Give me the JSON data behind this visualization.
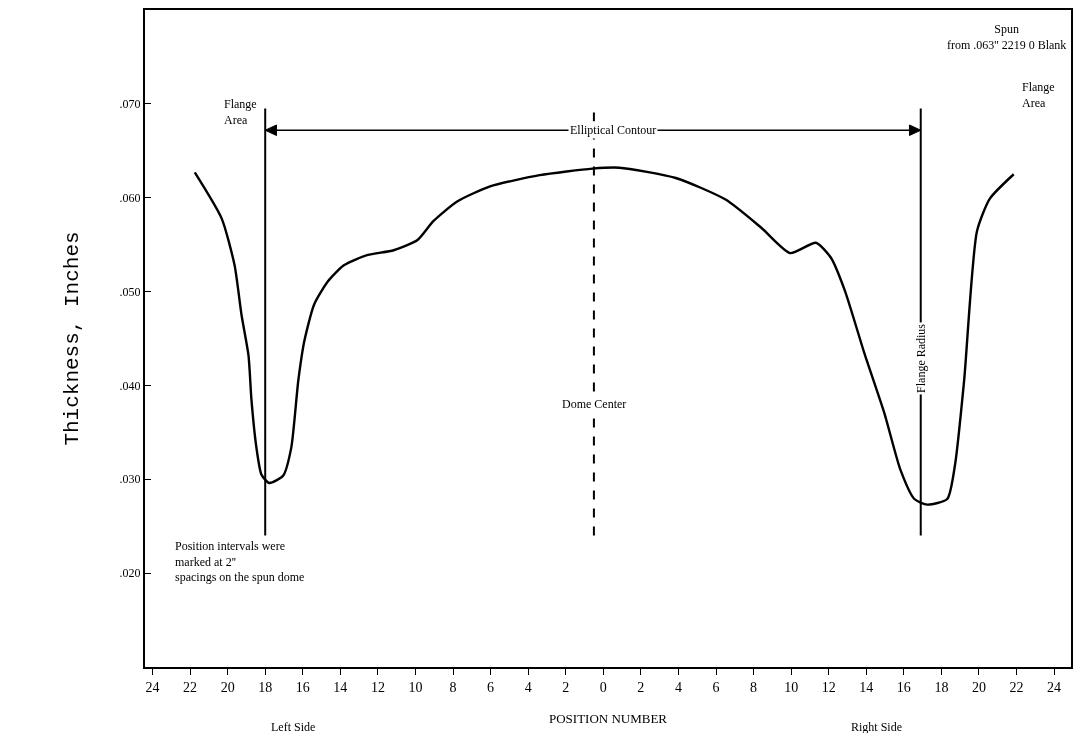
{
  "chart_data": {
    "type": "line",
    "xlabel": "POSITION NUMBER",
    "ylabel": "Thickness, Inches",
    "x": [
      -21.75,
      -20.32,
      -19.63,
      -19.26,
      -18.89,
      -18.73,
      -18.47,
      -18.2,
      -17.78,
      -17.04,
      -16.61,
      -16.24,
      -15.92,
      -15.4,
      -14.66,
      -13.81,
      -12.54,
      -11.16,
      -9.89,
      -9.05,
      -7.78,
      -6.03,
      -3.39,
      -0.58,
      0.85,
      3.86,
      6.51,
      8.41,
      9.95,
      11.32,
      12.12,
      12.86,
      13.92,
      14.97,
      15.82,
      16.56,
      17.25,
      18.31,
      18.73,
      19.21,
      19.89,
      20.58,
      21.85
    ],
    "series": [
      {
        "color": "#000000",
        "values": [
          0.0627,
          0.0578,
          0.0528,
          0.0475,
          0.0432,
          0.0384,
          0.0334,
          0.0305,
          0.0296,
          0.0304,
          0.0334,
          0.0405,
          0.0447,
          0.0486,
          0.0511,
          0.0528,
          0.0539,
          0.0544,
          0.0555,
          0.0575,
          0.0596,
          0.0612,
          0.0624,
          0.0631,
          0.0632,
          0.0621,
          0.0598,
          0.0568,
          0.0541,
          0.0552,
          0.0536,
          0.0501,
          0.0433,
          0.037,
          0.031,
          0.0279,
          0.0273,
          0.0279,
          0.0316,
          0.0405,
          0.0564,
          0.0599,
          0.0625
        ]
      }
    ],
    "xlim": [
      -24.4,
      24.9
    ],
    "ylim": [
      0.01,
      0.08
    ],
    "xticks": [
      {
        "value": -24,
        "label": "24"
      },
      {
        "value": -22,
        "label": "22"
      },
      {
        "value": -20,
        "label": "20"
      },
      {
        "value": -18,
        "label": "18"
      },
      {
        "value": -16,
        "label": "16"
      },
      {
        "value": -14,
        "label": "14"
      },
      {
        "value": -12,
        "label": "12"
      },
      {
        "value": -10,
        "label": "10"
      },
      {
        "value": -8,
        "label": "8"
      },
      {
        "value": -6,
        "label": "6"
      },
      {
        "value": -4,
        "label": "4"
      },
      {
        "value": -2,
        "label": "2"
      },
      {
        "value": 0,
        "label": "0"
      },
      {
        "value": 2,
        "label": "2"
      },
      {
        "value": 4,
        "label": "4"
      },
      {
        "value": 6,
        "label": "6"
      },
      {
        "value": 8,
        "label": "8"
      },
      {
        "value": 10,
        "label": "10"
      },
      {
        "value": 12,
        "label": "12"
      },
      {
        "value": 14,
        "label": "14"
      },
      {
        "value": 16,
        "label": "16"
      },
      {
        "value": 18,
        "label": "18"
      },
      {
        "value": 20,
        "label": "20"
      },
      {
        "value": 22,
        "label": "22"
      },
      {
        "value": 24,
        "label": "24"
      }
    ],
    "yticks": [
      {
        "value": 0.02,
        "label": ".020"
      },
      {
        "value": 0.03,
        "label": ".030"
      },
      {
        "value": 0.04,
        "label": ".040"
      },
      {
        "value": 0.05,
        "label": ".050"
      },
      {
        "value": 0.06,
        "label": ".060"
      },
      {
        "value": 0.07,
        "label": ".070"
      }
    ],
    "ref_lines": [
      {
        "axis": "x",
        "value": -18,
        "label": "Flange Area"
      },
      {
        "axis": "x",
        "value": -0.5,
        "label": "Dome Center",
        "line_style": "dashed"
      },
      {
        "axis": "x",
        "value": 16.9,
        "label": "Flange Radius"
      }
    ],
    "annotations": [
      "Spun from .063'' 2219 0 Blank",
      "Elliptical Contour",
      "Flange Area",
      "Position intervals were marked at 2'' spacings on the spun dome",
      "Left Side",
      "Right Side"
    ],
    "grid": false,
    "legend": false,
    "marker": "none",
    "line_style": "solid"
  }
}
